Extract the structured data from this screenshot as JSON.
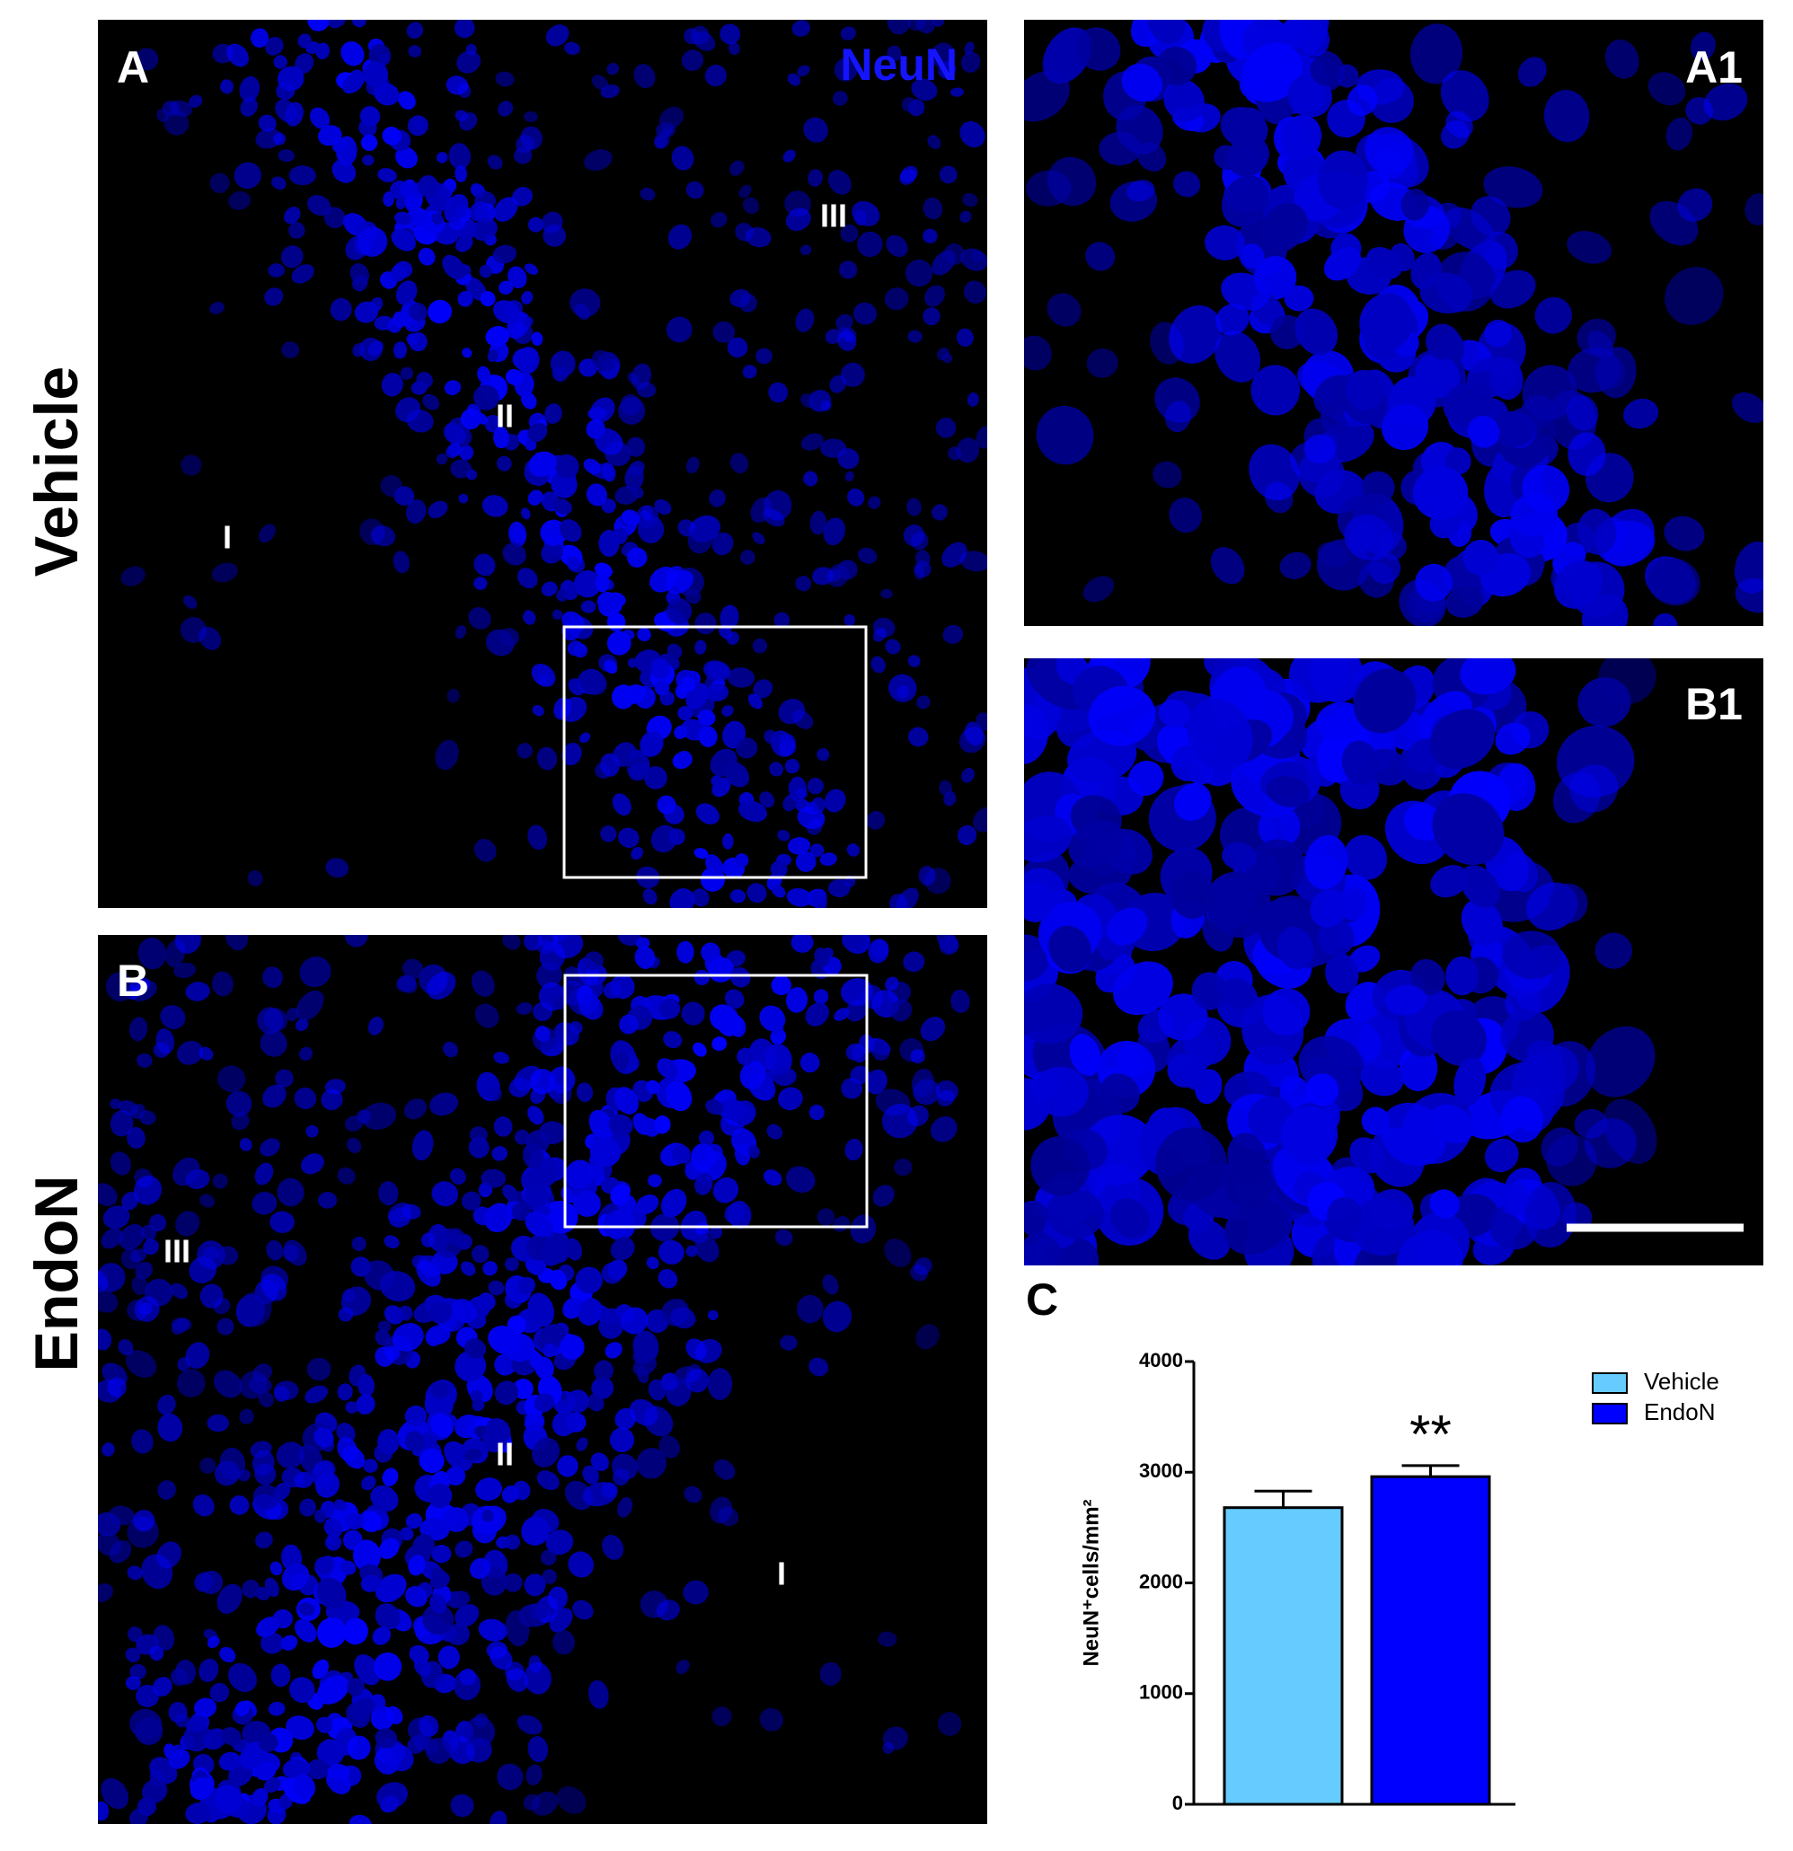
{
  "row_labels": [
    "Vehicle",
    "EndoN"
  ],
  "panels": {
    "A": {
      "label": "A",
      "stain": "NeuN",
      "layers": [
        "III",
        "II",
        "I"
      ]
    },
    "B": {
      "label": "B",
      "layers": [
        "III",
        "II",
        "I"
      ]
    },
    "A1": {
      "label": "A1"
    },
    "B1": {
      "label": "B1"
    },
    "C": {
      "label": "C"
    }
  },
  "chart_data": {
    "type": "bar",
    "y_label": "NeuN⁺cells/mm²",
    "categories": [
      null
    ],
    "series": [
      {
        "name": "Vehicle",
        "color": "#66ccff",
        "values": [
          2680
        ],
        "errors": [
          150
        ]
      },
      {
        "name": "EndoN",
        "color": "#0000ff",
        "values": [
          2960
        ],
        "errors": [
          100
        ],
        "annotation": "**"
      }
    ],
    "ylim": [
      0,
      4000
    ],
    "yticks": [
      0,
      1000,
      2000,
      3000,
      4000
    ],
    "legend": "upper right"
  }
}
